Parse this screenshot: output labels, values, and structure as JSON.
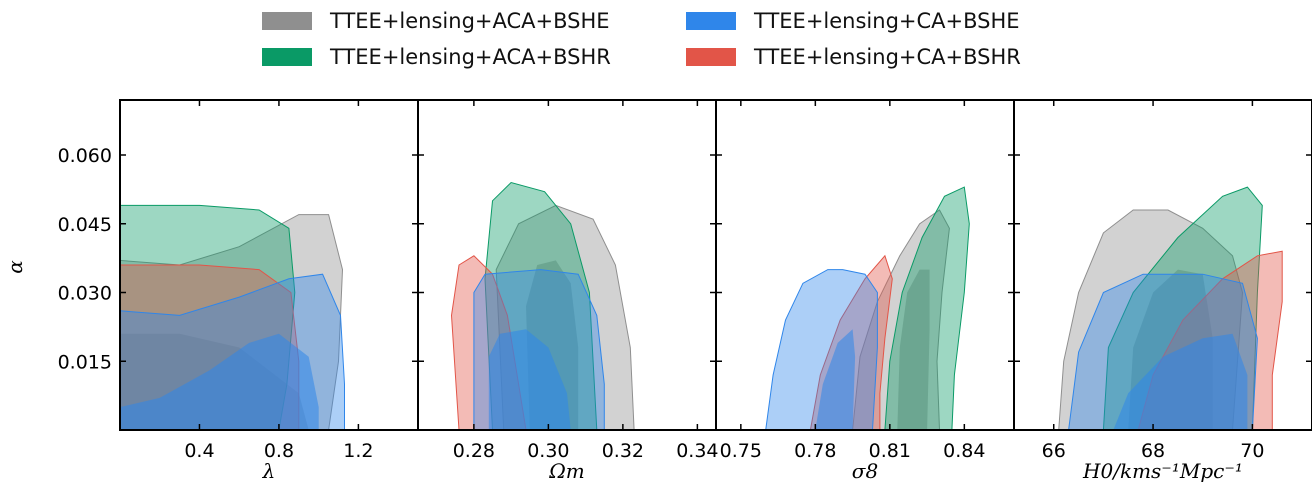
{
  "legend": {
    "items": [
      {
        "label": "TTEE+lensing+ACA+BSHE",
        "color": "#8f8f8f"
      },
      {
        "label": "TTEE+lensing+CA+BSHE",
        "color": "#2f86ea"
      },
      {
        "label": "TTEE+lensing+ACA+BSHR",
        "color": "#0a9a66"
      },
      {
        "label": "TTEE+lensing+CA+BSHR",
        "color": "#e25548"
      }
    ]
  },
  "colors": {
    "ACA_BSHE": "#8f8f8f",
    "ACA_BSHR": "#0a9a66",
    "CA_BSHE": "#2f86ea",
    "CA_BSHR": "#e25548"
  },
  "chart_data": {
    "type": "contour",
    "ylabel": "α",
    "ylim": [
      0.0,
      0.072
    ],
    "yticks": [
      "0.015",
      "0.030",
      "0.045",
      "0.060"
    ],
    "panels": [
      {
        "xlabel": "λ",
        "xlim": [
          0.0,
          1.5
        ],
        "xticks": [
          0.4,
          0.8,
          1.2
        ],
        "xtick_labels": [
          "0.4",
          "0.8",
          "1.2"
        ],
        "contours": {
          "ACA_BSHE": {
            "outer": [
              [
                0,
                0
              ],
              [
                0,
                0.037
              ],
              [
                0.3,
                0.036
              ],
              [
                0.6,
                0.04
              ],
              [
                0.9,
                0.047
              ],
              [
                1.05,
                0.047
              ],
              [
                1.12,
                0.035
              ],
              [
                1.1,
                0.015
              ],
              [
                1.05,
                0
              ]
            ],
            "inner": [
              [
                0,
                0
              ],
              [
                0,
                0.021
              ],
              [
                0.3,
                0.021
              ],
              [
                0.6,
                0.018
              ],
              [
                0.9,
                0.008
              ],
              [
                0.95,
                0
              ]
            ]
          },
          "ACA_BSHR": {
            "outer": [
              [
                0,
                0
              ],
              [
                0,
                0.049
              ],
              [
                0.4,
                0.049
              ],
              [
                0.7,
                0.048
              ],
              [
                0.85,
                0.044
              ],
              [
                0.88,
                0.03
              ],
              [
                0.84,
                0.01
              ],
              [
                0.8,
                0
              ]
            ],
            "inner": []
          },
          "CA_BSHR": {
            "outer": [
              [
                0,
                0
              ],
              [
                0,
                0.036
              ],
              [
                0.4,
                0.036
              ],
              [
                0.7,
                0.035
              ],
              [
                0.86,
                0.03
              ],
              [
                0.9,
                0.015
              ],
              [
                0.9,
                0
              ]
            ],
            "inner": []
          },
          "CA_BSHE": {
            "outer": [
              [
                0,
                0
              ],
              [
                0,
                0.026
              ],
              [
                0.3,
                0.025
              ],
              [
                0.6,
                0.029
              ],
              [
                0.85,
                0.033
              ],
              [
                1.02,
                0.034
              ],
              [
                1.11,
                0.025
              ],
              [
                1.13,
                0.01
              ],
              [
                1.13,
                0
              ]
            ],
            "inner": [
              [
                0,
                0
              ],
              [
                0,
                0.005
              ],
              [
                0.2,
                0.007
              ],
              [
                0.45,
                0.013
              ],
              [
                0.65,
                0.019
              ],
              [
                0.8,
                0.021
              ],
              [
                0.95,
                0.016
              ],
              [
                1.0,
                0.005
              ],
              [
                1.0,
                0
              ]
            ]
          }
        }
      },
      {
        "xlabel": "Ωm",
        "xlim": [
          0.265,
          0.345
        ],
        "xticks": [
          0.28,
          0.3,
          0.32,
          0.34
        ],
        "xtick_labels": [
          "0.28",
          "0.30",
          "0.32",
          "0.34"
        ],
        "contours": {
          "ACA_BSHE": {
            "outer": [
              [
                0.288,
                0
              ],
              [
                0.286,
                0.035
              ],
              [
                0.292,
                0.045
              ],
              [
                0.302,
                0.049
              ],
              [
                0.312,
                0.046
              ],
              [
                0.318,
                0.036
              ],
              [
                0.322,
                0.018
              ],
              [
                0.323,
                0
              ]
            ],
            "inner": [
              [
                0.295,
                0
              ],
              [
                0.294,
                0.027
              ],
              [
                0.297,
                0.036
              ],
              [
                0.302,
                0.037
              ],
              [
                0.306,
                0.032
              ],
              [
                0.308,
                0.018
              ],
              [
                0.308,
                0
              ]
            ]
          },
          "ACA_BSHR": {
            "outer": [
              [
                0.285,
                0
              ],
              [
                0.283,
                0.033
              ],
              [
                0.285,
                0.05
              ],
              [
                0.29,
                0.054
              ],
              [
                0.299,
                0.052
              ],
              [
                0.306,
                0.045
              ],
              [
                0.311,
                0.03
              ],
              [
                0.313,
                0
              ]
            ],
            "inner": []
          },
          "CA_BSHR": {
            "outer": [
              [
                0.276,
                0
              ],
              [
                0.274,
                0.025
              ],
              [
                0.276,
                0.036
              ],
              [
                0.28,
                0.038
              ],
              [
                0.285,
                0.034
              ],
              [
                0.289,
                0.025
              ],
              [
                0.292,
                0.01
              ],
              [
                0.294,
                0
              ]
            ],
            "inner": []
          },
          "CA_BSHE": {
            "outer": [
              [
                0.28,
                0
              ],
              [
                0.28,
                0.03
              ],
              [
                0.283,
                0.034
              ],
              [
                0.298,
                0.035
              ],
              [
                0.308,
                0.034
              ],
              [
                0.313,
                0.025
              ],
              [
                0.315,
                0.01
              ],
              [
                0.315,
                0
              ]
            ],
            "inner": [
              [
                0.284,
                0
              ],
              [
                0.284,
                0.016
              ],
              [
                0.287,
                0.021
              ],
              [
                0.294,
                0.022
              ],
              [
                0.3,
                0.018
              ],
              [
                0.305,
                0.008
              ],
              [
                0.306,
                0
              ]
            ]
          }
        }
      },
      {
        "xlabel": "σ8",
        "xlim": [
          0.74,
          0.86
        ],
        "xticks": [
          0.75,
          0.78,
          0.81,
          0.84
        ],
        "xtick_labels": [
          "0.75",
          "0.78",
          "0.81",
          "0.84"
        ],
        "contours": {
          "ACA_BSHE": {
            "outer": [
              [
                0.795,
                0
              ],
              [
                0.798,
                0.016
              ],
              [
                0.805,
                0.028
              ],
              [
                0.814,
                0.038
              ],
              [
                0.822,
                0.045
              ],
              [
                0.83,
                0.048
              ],
              [
                0.834,
                0.044
              ],
              [
                0.831,
                0.03
              ],
              [
                0.829,
                0.015
              ],
              [
                0.83,
                0
              ]
            ],
            "inner": [
              [
                0.813,
                0
              ],
              [
                0.814,
                0.018
              ],
              [
                0.817,
                0.03
              ],
              [
                0.822,
                0.035
              ],
              [
                0.826,
                0.035
              ],
              [
                0.826,
                0.022
              ],
              [
                0.825,
                0
              ]
            ]
          },
          "ACA_BSHR": {
            "outer": [
              [
                0.808,
                0
              ],
              [
                0.81,
                0.015
              ],
              [
                0.815,
                0.03
              ],
              [
                0.823,
                0.042
              ],
              [
                0.832,
                0.051
              ],
              [
                0.84,
                0.053
              ],
              [
                0.842,
                0.045
              ],
              [
                0.84,
                0.03
              ],
              [
                0.836,
                0.012
              ],
              [
                0.835,
                0
              ]
            ],
            "inner": []
          },
          "CA_BSHR": {
            "outer": [
              [
                0.778,
                0
              ],
              [
                0.782,
                0.012
              ],
              [
                0.79,
                0.024
              ],
              [
                0.8,
                0.033
              ],
              [
                0.808,
                0.038
              ],
              [
                0.811,
                0.033
              ],
              [
                0.808,
                0.02
              ],
              [
                0.806,
                0.008
              ],
              [
                0.806,
                0
              ]
            ],
            "inner": []
          },
          "CA_BSHE": {
            "outer": [
              [
                0.76,
                0
              ],
              [
                0.763,
                0.012
              ],
              [
                0.768,
                0.024
              ],
              [
                0.775,
                0.032
              ],
              [
                0.785,
                0.035
              ],
              [
                0.791,
                0.035
              ],
              [
                0.8,
                0.034
              ],
              [
                0.805,
                0.03
              ],
              [
                0.805,
                0.018
              ],
              [
                0.803,
                0
              ]
            ],
            "inner": [
              [
                0.78,
                0
              ],
              [
                0.783,
                0.01
              ],
              [
                0.789,
                0.019
              ],
              [
                0.795,
                0.022
              ],
              [
                0.796,
                0.016
              ],
              [
                0.795,
                0
              ]
            ]
          }
        }
      },
      {
        "xlabel": "H0/kms⁻¹Mpc⁻¹",
        "xlim": [
          65.2,
          71.2
        ],
        "xticks": [
          66,
          68,
          70
        ],
        "xtick_labels": [
          "66",
          "68",
          "70"
        ],
        "contours": {
          "ACA_BSHE": {
            "outer": [
              [
                66.1,
                0
              ],
              [
                66.2,
                0.015
              ],
              [
                66.5,
                0.03
              ],
              [
                67.0,
                0.043
              ],
              [
                67.6,
                0.048
              ],
              [
                68.3,
                0.048
              ],
              [
                69.0,
                0.044
              ],
              [
                69.6,
                0.038
              ],
              [
                69.8,
                0.03
              ],
              [
                69.6,
                0
              ]
            ],
            "inner": [
              [
                67.5,
                0
              ],
              [
                67.6,
                0.018
              ],
              [
                68.0,
                0.03
              ],
              [
                68.5,
                0.035
              ],
              [
                69.0,
                0.034
              ],
              [
                69.2,
                0.02
              ],
              [
                69.2,
                0
              ]
            ]
          },
          "ACA_BSHR": {
            "outer": [
              [
                67.0,
                0
              ],
              [
                67.1,
                0.018
              ],
              [
                67.6,
                0.03
              ],
              [
                68.5,
                0.042
              ],
              [
                69.4,
                0.051
              ],
              [
                69.9,
                0.053
              ],
              [
                70.2,
                0.049
              ],
              [
                70.1,
                0.03
              ],
              [
                70.0,
                0
              ]
            ],
            "inner": []
          },
          "CA_BSHR": {
            "outer": [
              [
                67.7,
                0
              ],
              [
                68.0,
                0.012
              ],
              [
                68.6,
                0.024
              ],
              [
                69.4,
                0.033
              ],
              [
                70.1,
                0.038
              ],
              [
                70.6,
                0.039
              ],
              [
                70.6,
                0.028
              ],
              [
                70.4,
                0.012
              ],
              [
                70.4,
                0
              ]
            ],
            "inner": []
          },
          "CA_BSHE": {
            "outer": [
              [
                66.3,
                0
              ],
              [
                66.5,
                0.017
              ],
              [
                67.0,
                0.03
              ],
              [
                67.8,
                0.034
              ],
              [
                69.0,
                0.034
              ],
              [
                69.8,
                0.032
              ],
              [
                70.1,
                0.02
              ],
              [
                70.0,
                0
              ]
            ],
            "inner": [
              [
                67.2,
                0
              ],
              [
                67.5,
                0.008
              ],
              [
                68.2,
                0.016
              ],
              [
                69.0,
                0.02
              ],
              [
                69.6,
                0.021
              ],
              [
                69.9,
                0.012
              ],
              [
                69.9,
                0
              ]
            ]
          }
        }
      }
    ]
  }
}
